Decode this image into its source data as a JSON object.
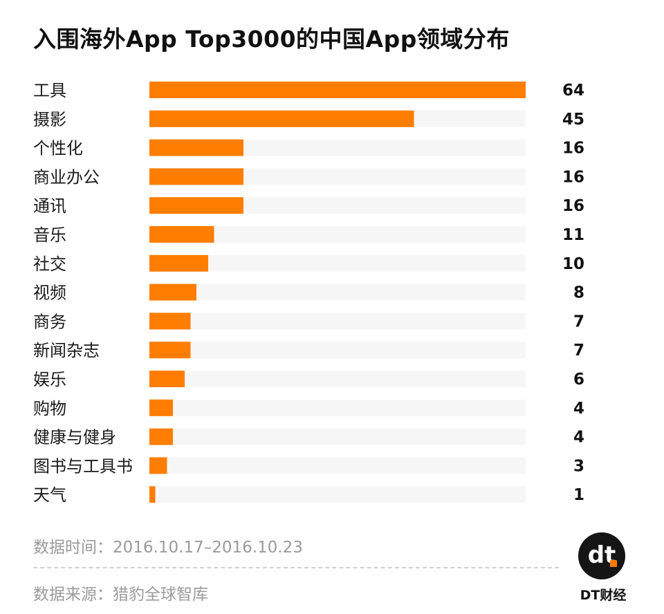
{
  "chart_data": {
    "type": "bar",
    "orientation": "horizontal",
    "title": "入围海外App Top3000的中国App领域分布",
    "categories": [
      "工具",
      "摄影",
      "个性化",
      "商业办公",
      "通讯",
      "音乐",
      "社交",
      "视频",
      "商务",
      "新闻杂志",
      "娱乐",
      "购物",
      "健康与健身",
      "图书与工具书",
      "天气"
    ],
    "values": [
      64,
      45,
      16,
      16,
      16,
      11,
      10,
      8,
      7,
      7,
      6,
      4,
      4,
      3,
      1
    ],
    "xlim": [
      0,
      64
    ],
    "bar_color": "#ff7d00",
    "track_color": "#f6f6f6",
    "grid": false,
    "legend": "none"
  },
  "notes": {
    "date": "数据时间：2016.10.17–2016.10.23",
    "source": "数据来源：猎豹全球智库"
  },
  "brand": {
    "logo_text": "dt",
    "name": "DT财经"
  }
}
